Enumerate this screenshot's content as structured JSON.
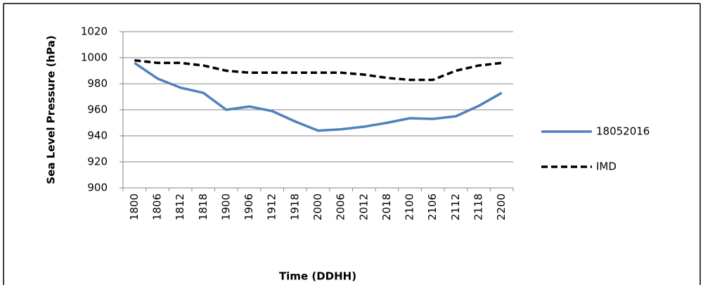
{
  "chart_data": {
    "type": "line",
    "x_label": "Time (DDHH)",
    "y_label": "Sea Level Pressure (hPa)",
    "categories": [
      "1800",
      "1806",
      "1812",
      "1818",
      "1900",
      "1906",
      "1912",
      "1918",
      "2000",
      "2006",
      "2012",
      "2018",
      "2100",
      "2106",
      "2112",
      "2118",
      "2200"
    ],
    "series": [
      {
        "name": "18052016",
        "color": "#4f81bd",
        "dash": false,
        "values": [
          996,
          984,
          977,
          973,
          960,
          962.5,
          959,
          951,
          944,
          945,
          947,
          950,
          953.5,
          953,
          955,
          963,
          973
        ]
      },
      {
        "name": "IMD",
        "color": "#000000",
        "dash": true,
        "values": [
          998,
          996,
          996,
          994,
          990,
          988.5,
          988.5,
          988.5,
          988.5,
          988.5,
          987,
          984.5,
          983,
          983,
          990,
          994,
          996
        ]
      }
    ],
    "ylim": [
      900,
      1020
    ],
    "yticks": [
      900,
      920,
      940,
      960,
      980,
      1000,
      1020
    ],
    "grid": true,
    "legend": "right"
  }
}
